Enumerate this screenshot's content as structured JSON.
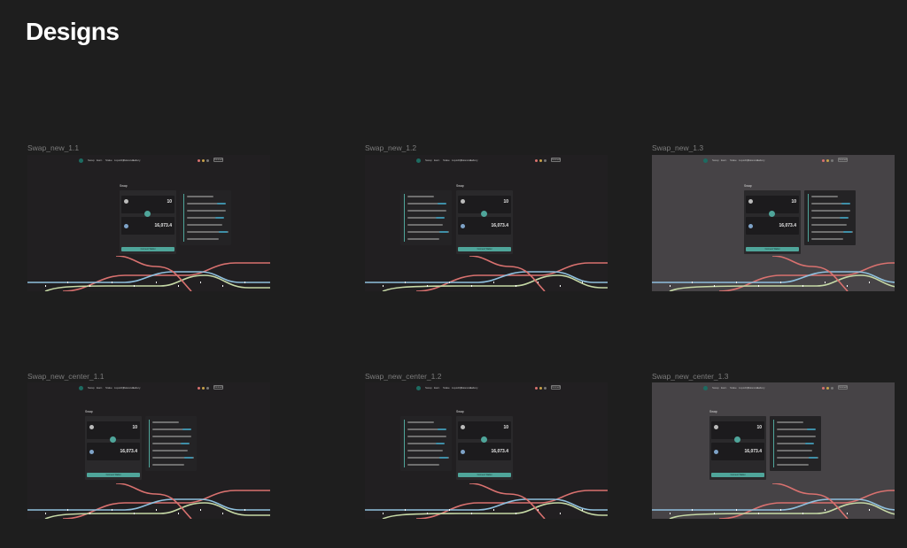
{
  "page": {
    "title": "Designs"
  },
  "frames": [
    {
      "label": "Swap_new_1.1",
      "variant": "route-right",
      "theme": "dark"
    },
    {
      "label": "Swap_new_1.2",
      "variant": "route-left",
      "theme": "dark"
    },
    {
      "label": "Swap_new_1.3",
      "variant": "route-right",
      "theme": "gray"
    },
    {
      "label": "Swap_new_center_1.1",
      "variant": "route-right",
      "theme": "dark"
    },
    {
      "label": "Swap_new_center_1.2",
      "variant": "route-left",
      "theme": "dark"
    },
    {
      "label": "Swap_new_center_1.3",
      "variant": "route-right",
      "theme": "gray"
    }
  ],
  "mock": {
    "nav_items": [
      "Swap",
      "Earn",
      "Stake",
      "Liquidity",
      "Balances",
      "Gallery"
    ],
    "nav_button": "Connect",
    "swap_title": "Swap",
    "pay_value": "10",
    "receive_value": "16,073.4",
    "connect_label": "Connect Wallet"
  },
  "colors": {
    "accent": "#4fa59a",
    "metro_red": "#d9716f",
    "metro_blue": "#8fc0de",
    "metro_green": "#c6d9a6"
  }
}
